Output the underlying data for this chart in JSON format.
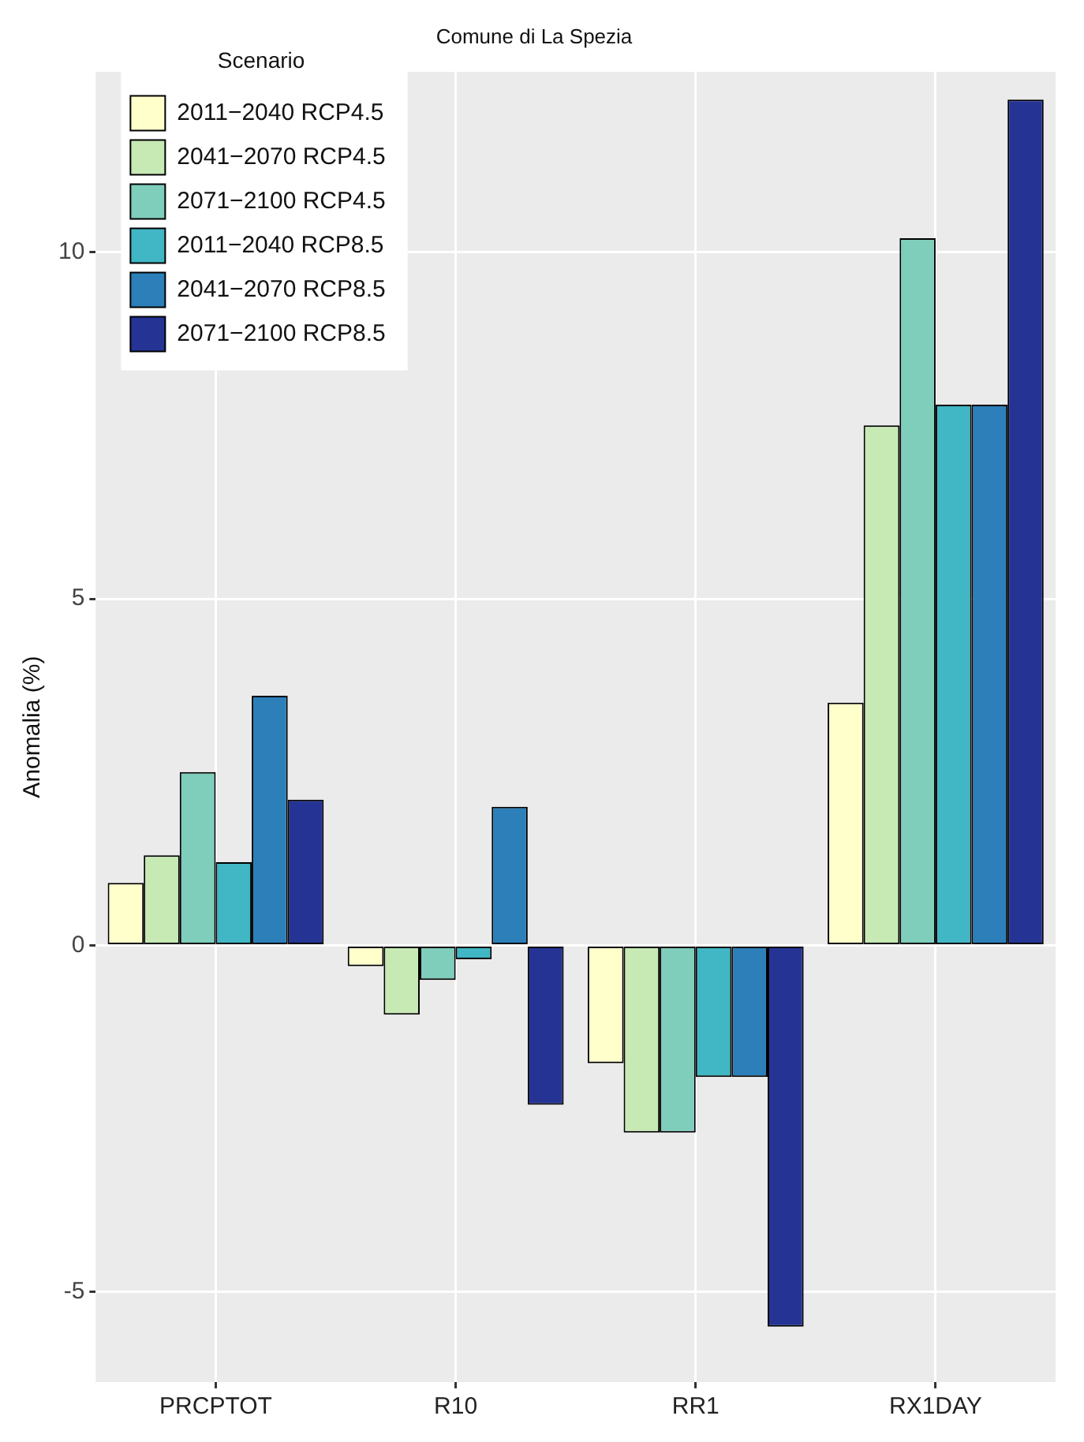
{
  "chart_data": {
    "type": "bar",
    "title": "Comune di La Spezia",
    "ylabel": "Anomalia (%)",
    "legend_title": "Scenario",
    "categories": [
      "PRCPTOT",
      "R10",
      "RR1",
      "RX1DAY"
    ],
    "series": [
      {
        "name": "2011−2040 RCP4.5",
        "color": "#ffffcc",
        "values": [
          0.9,
          -0.3,
          -1.7,
          3.5
        ]
      },
      {
        "name": "2041−2070 RCP4.5",
        "color": "#c7e9b4",
        "values": [
          1.3,
          -1.0,
          -2.7,
          7.5
        ]
      },
      {
        "name": "2071−2100 RCP4.5",
        "color": "#7fcdbb",
        "values": [
          2.5,
          -0.5,
          -2.7,
          10.2
        ]
      },
      {
        "name": "2011−2040 RCP8.5",
        "color": "#41b6c4",
        "values": [
          1.2,
          -0.2,
          -1.9,
          7.8
        ]
      },
      {
        "name": "2041−2070 RCP8.5",
        "color": "#2c7fb8",
        "values": [
          3.6,
          2.0,
          -1.9,
          7.8
        ]
      },
      {
        "name": "2071−2100 RCP8.5",
        "color": "#253494",
        "values": [
          2.1,
          -2.3,
          -5.5,
          12.2
        ]
      }
    ],
    "ylim": [
      -6.3,
      12.6
    ],
    "yticks": [
      -5,
      0,
      5,
      10
    ],
    "grid": true,
    "legend": "top left"
  }
}
